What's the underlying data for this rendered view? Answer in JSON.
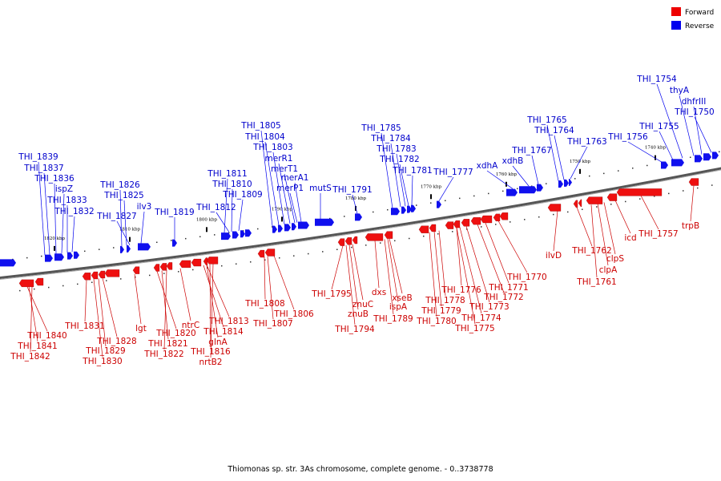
{
  "legend": [
    {
      "label": "Forward",
      "color": "#ee0000"
    },
    {
      "label": "Reverse",
      "color": "#0000ee"
    }
  ],
  "caption": "Thiomonas sp. str. 3As chromosome, complete genome. - 0..3738778",
  "kbp_markers": [
    "1820 kbp",
    "1810 kbp",
    "1800 kbp",
    "1790 kbp",
    "1780 kbp",
    "1770 kbp",
    "1760 kbp",
    "1750 kbp",
    "1740 kbp"
  ],
  "reverse_labels": [
    "THI_1839",
    "THI_1837",
    "THI_1836",
    "ispZ",
    "THI_1833",
    "THI_1832",
    "THI_1826",
    "THI_1825",
    "THI_1827",
    "ilv3",
    "THI_1819",
    "THI_1811",
    "THI_1810",
    "THI_1809",
    "THI_1812",
    "THI_1805",
    "THI_1804",
    "THI_1803",
    "merR1",
    "merT1",
    "merA1",
    "merP1",
    "mutS",
    "THI_1791",
    "THI_1785",
    "THI_1784",
    "THI_1783",
    "THI_1782",
    "THI_1781",
    "THI_1777",
    "xdhA",
    "xdhB",
    "THI_1767",
    "THI_1765",
    "THI_1764",
    "THI_1763",
    "THI_1756",
    "THI_1755",
    "THI_1754",
    "thyA",
    "dhfrIII",
    "THI_1750"
  ],
  "forward_labels": [
    "THI_1840",
    "THI_1841",
    "THI_1842",
    "THI_1831",
    "THI_1828",
    "THI_1829",
    "THI_1830",
    "lgt",
    "THI_1820",
    "THI_1821",
    "THI_1822",
    "ntrC",
    "THI_1813",
    "THI_1814",
    "glnA",
    "THI_1816",
    "nrtB2",
    "THI_1808",
    "THI_1807",
    "THI_1806",
    "THI_1795",
    "znuC",
    "znuB",
    "THI_1794",
    "dxs",
    "xseB",
    "ispA",
    "THI_1789",
    "THI_1776",
    "THI_1778",
    "THI_1779",
    "THI_1780",
    "THI_1774",
    "THI_1775",
    "THI_1773",
    "THI_1772",
    "THI_1771",
    "THI_1770",
    "ilvD",
    "THI_1762",
    "clpS",
    "clpA",
    "THI_1761",
    "icd",
    "THI_1757",
    "trpB"
  ]
}
